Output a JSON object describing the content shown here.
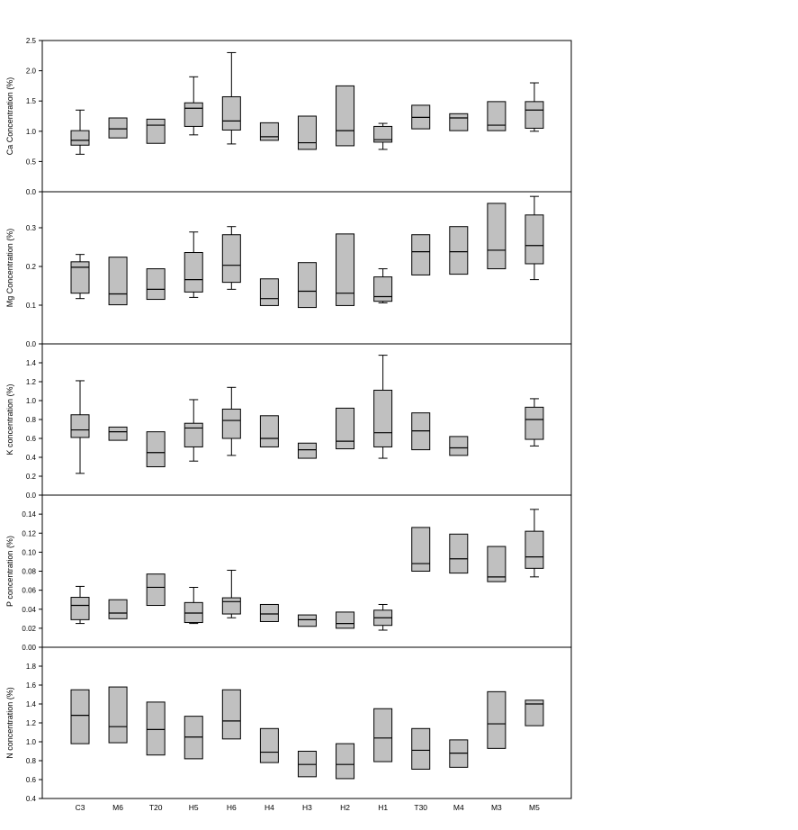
{
  "chart_data": {
    "type": "boxplot",
    "categories": [
      "C3",
      "M6",
      "T20",
      "H5",
      "H6",
      "H4",
      "H3",
      "H2",
      "H1",
      "T30",
      "M4",
      "M3",
      "M5"
    ],
    "panels": [
      {
        "name": "Ca",
        "ylabel": "Ca Concentration (%)",
        "ylim": [
          0,
          2.5
        ],
        "ticks": [
          0,
          0.5,
          1.0,
          1.5,
          2.0,
          2.5
        ],
        "tick_labels": [
          "0.0",
          "0.5",
          "1.0",
          "1.5",
          "2.0",
          "2.5"
        ],
        "boxes": [
          {
            "min": 0.62,
            "q1": 0.77,
            "median": 0.85,
            "q3": 1.01,
            "max": 1.35
          },
          {
            "q1": 0.89,
            "median": 1.04,
            "q3": 1.22
          },
          {
            "q1": 0.8,
            "median": 1.1,
            "q3": 1.2
          },
          {
            "min": 0.94,
            "q1": 1.08,
            "median": 1.38,
            "q3": 1.47,
            "max": 1.9
          },
          {
            "min": 0.79,
            "q1": 1.02,
            "median": 1.17,
            "q3": 1.57,
            "max": 2.3
          },
          {
            "q1": 0.85,
            "median": 0.91,
            "q3": 1.14
          },
          {
            "q1": 0.7,
            "median": 0.81,
            "q3": 1.25
          },
          {
            "q1": 0.76,
            "median": 1.01,
            "q3": 1.75
          },
          {
            "min": 0.7,
            "q1": 0.82,
            "median": 0.86,
            "q3": 1.08,
            "max": 1.13
          },
          {
            "q1": 1.04,
            "median": 1.23,
            "q3": 1.43
          },
          {
            "q1": 1.01,
            "median": 1.22,
            "q3": 1.29
          },
          {
            "q1": 1.01,
            "median": 1.1,
            "q3": 1.49
          },
          {
            "min": 1.0,
            "q1": 1.05,
            "median": 1.35,
            "q3": 1.49,
            "max": 1.8
          }
        ]
      },
      {
        "name": "Mg",
        "ylabel": "Mg Concentration (%)",
        "ylim": [
          0,
          0.393
        ],
        "ticks": [
          0,
          0.1,
          0.2,
          0.3
        ],
        "tick_labels": [
          "0.0",
          "0.1",
          "0.2",
          "0.3"
        ],
        "boxes": [
          {
            "min": 0.117,
            "q1": 0.131,
            "median": 0.198,
            "q3": 0.212,
            "max": 0.231
          },
          {
            "q1": 0.101,
            "median": 0.129,
            "q3": 0.224
          },
          {
            "q1": 0.115,
            "median": 0.141,
            "q3": 0.194
          },
          {
            "min": 0.12,
            "q1": 0.134,
            "median": 0.166,
            "q3": 0.236,
            "max": 0.289
          },
          {
            "min": 0.141,
            "q1": 0.159,
            "median": 0.203,
            "q3": 0.282,
            "max": 0.303
          },
          {
            "q1": 0.099,
            "median": 0.117,
            "q3": 0.168
          },
          {
            "q1": 0.094,
            "median": 0.136,
            "q3": 0.21
          },
          {
            "q1": 0.099,
            "median": 0.131,
            "q3": 0.284
          },
          {
            "min": 0.106,
            "q1": 0.11,
            "median": 0.122,
            "q3": 0.173,
            "max": 0.194
          },
          {
            "q1": 0.178,
            "median": 0.238,
            "q3": 0.282
          },
          {
            "q1": 0.18,
            "median": 0.238,
            "q3": 0.303
          },
          {
            "q1": 0.194,
            "median": 0.242,
            "q3": 0.363
          },
          {
            "min": 0.166,
            "q1": 0.207,
            "median": 0.254,
            "q3": 0.333,
            "max": 0.381
          }
        ]
      },
      {
        "name": "K",
        "ylabel": "K concentration (%)",
        "ylim": [
          0,
          1.6
        ],
        "ticks": [
          0,
          0.2,
          0.4,
          0.6,
          0.8,
          1.0,
          1.2,
          1.4
        ],
        "tick_labels": [
          "0.0",
          "0.2",
          "0.4",
          "0.6",
          "0.8",
          "1.0",
          "1.2",
          "1.4"
        ],
        "boxes": [
          {
            "min": 0.23,
            "q1": 0.61,
            "median": 0.69,
            "q3": 0.85,
            "max": 1.21
          },
          {
            "q1": 0.58,
            "median": 0.67,
            "q3": 0.72
          },
          {
            "q1": 0.3,
            "median": 0.45,
            "q3": 0.67
          },
          {
            "min": 0.36,
            "q1": 0.51,
            "median": 0.71,
            "q3": 0.76,
            "max": 1.01
          },
          {
            "min": 0.42,
            "q1": 0.6,
            "median": 0.79,
            "q3": 0.91,
            "max": 1.14
          },
          {
            "q1": 0.51,
            "median": 0.6,
            "q3": 0.84
          },
          {
            "q1": 0.39,
            "median": 0.48,
            "q3": 0.55
          },
          {
            "q1": 0.49,
            "median": 0.57,
            "q3": 0.92
          },
          {
            "min": 0.39,
            "q1": 0.51,
            "median": 0.66,
            "q3": 1.11,
            "max": 1.48
          },
          {
            "q1": 0.48,
            "median": 0.68,
            "q3": 0.87
          },
          {
            "q1": 0.42,
            "median": 0.5,
            "q3": 0.62
          },
          null,
          {
            "min": 0.52,
            "q1": 0.59,
            "median": 0.8,
            "q3": 0.93,
            "max": 1.02
          }
        ]
      },
      {
        "name": "P",
        "ylabel": "P concentration (%)",
        "ylim": [
          0,
          0.16
        ],
        "ticks": [
          0,
          0.02,
          0.04,
          0.06,
          0.08,
          0.1,
          0.12,
          0.14
        ],
        "tick_labels": [
          "0.00",
          "0.02",
          "0.04",
          "0.06",
          "0.08",
          "0.10",
          "0.12",
          "0.14"
        ],
        "boxes": [
          {
            "min": 0.025,
            "q1": 0.029,
            "median": 0.044,
            "q3": 0.0525,
            "max": 0.064
          },
          {
            "q1": 0.03,
            "median": 0.036,
            "q3": 0.05
          },
          {
            "q1": 0.044,
            "median": 0.063,
            "q3": 0.077
          },
          {
            "min": 0.025,
            "q1": 0.026,
            "median": 0.036,
            "q3": 0.047,
            "max": 0.063
          },
          {
            "min": 0.031,
            "q1": 0.035,
            "median": 0.048,
            "q3": 0.052,
            "max": 0.081
          },
          {
            "q1": 0.027,
            "median": 0.035,
            "q3": 0.045
          },
          {
            "q1": 0.022,
            "median": 0.029,
            "q3": 0.034
          },
          {
            "q1": 0.02,
            "median": 0.025,
            "q3": 0.037
          },
          {
            "min": 0.018,
            "q1": 0.023,
            "median": 0.031,
            "q3": 0.039,
            "max": 0.045
          },
          {
            "q1": 0.08,
            "median": 0.088,
            "q3": 0.126
          },
          {
            "q1": 0.078,
            "median": 0.093,
            "q3": 0.119
          },
          {
            "q1": 0.069,
            "median": 0.074,
            "q3": 0.106
          },
          {
            "min": 0.074,
            "q1": 0.083,
            "median": 0.095,
            "q3": 0.122,
            "max": 0.145
          }
        ]
      },
      {
        "name": "N",
        "ylabel": "N concentration (%)",
        "ylim": [
          0.4,
          2.0
        ],
        "ticks": [
          0.4,
          0.6,
          0.8,
          1.0,
          1.2,
          1.4,
          1.6,
          1.8
        ],
        "tick_labels": [
          "0.4",
          "0.6",
          "0.8",
          "1.0",
          "1.2",
          "1.4",
          "1.6",
          "1.8"
        ],
        "boxes": [
          {
            "q1": 0.98,
            "median": 1.28,
            "q3": 1.55
          },
          {
            "q1": 0.99,
            "median": 1.16,
            "q3": 1.58
          },
          {
            "q1": 0.86,
            "median": 1.13,
            "q3": 1.42
          },
          {
            "q1": 0.82,
            "median": 1.05,
            "q3": 1.27
          },
          {
            "q1": 1.03,
            "median": 1.22,
            "q3": 1.55
          },
          {
            "q1": 0.78,
            "median": 0.89,
            "q3": 1.14
          },
          {
            "q1": 0.63,
            "median": 0.76,
            "q3": 0.9
          },
          {
            "q1": 0.61,
            "median": 0.76,
            "q3": 0.98
          },
          {
            "q1": 0.79,
            "median": 1.04,
            "q3": 1.35
          },
          {
            "q1": 0.71,
            "median": 0.91,
            "q3": 1.14
          },
          {
            "q1": 0.73,
            "median": 0.88,
            "q3": 1.02
          },
          {
            "q1": 0.93,
            "median": 1.19,
            "q3": 1.53
          },
          {
            "q1": 1.17,
            "median": 1.4,
            "q3": 1.44
          }
        ]
      }
    ],
    "colors": {
      "box_fill": "#c0c0c0",
      "line": "#000000"
    }
  }
}
